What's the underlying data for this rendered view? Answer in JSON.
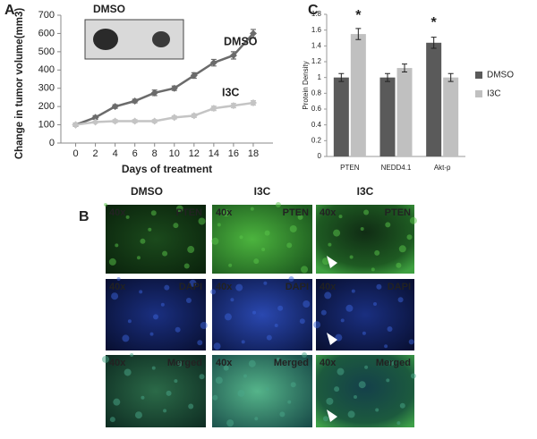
{
  "chart_data": [
    {
      "type": "line",
      "panel": "A",
      "x_label": "Days of treatment",
      "y_label": "Change in tumor volume(mm3)",
      "x": [
        0,
        2,
        4,
        6,
        8,
        10,
        12,
        14,
        16,
        18
      ],
      "series": [
        {
          "name": "DMSO",
          "color": "#6b6b6b",
          "values": [
            100,
            140,
            200,
            230,
            275,
            300,
            370,
            440,
            480,
            600
          ],
          "errors": [
            8,
            10,
            10,
            10,
            15,
            12,
            15,
            18,
            20,
            22
          ]
        },
        {
          "name": "I3C",
          "color": "#c4c4c4",
          "values": [
            100,
            115,
            120,
            120,
            120,
            140,
            150,
            190,
            205,
            220
          ],
          "errors": [
            5,
            6,
            8,
            8,
            8,
            8,
            10,
            12,
            12,
            12
          ]
        }
      ],
      "xlim": [
        -1.5,
        20
      ],
      "xticks": [
        0,
        2,
        4,
        6,
        8,
        10,
        12,
        14,
        16,
        18
      ],
      "ylim": [
        0,
        700
      ],
      "yticks": [
        0,
        100,
        200,
        300,
        400,
        500,
        600,
        700
      ],
      "annotations": [
        "DMSO"
      ]
    },
    {
      "type": "bar",
      "panel": "C",
      "y_label": "Protein Density",
      "categories": [
        "PTEN",
        "NEDD4.1",
        "Akt-p"
      ],
      "series": [
        {
          "name": "DMSO",
          "color": "#5a5a5a",
          "values": [
            1.0,
            1.0,
            1.44
          ],
          "errors": [
            0.05,
            0.05,
            0.07
          ]
        },
        {
          "name": "I3C",
          "color": "#c0c0c0",
          "values": [
            1.55,
            1.12,
            1.0
          ],
          "errors": [
            0.07,
            0.05,
            0.05
          ]
        }
      ],
      "ylim": [
        0,
        1.8
      ],
      "yticks": [
        0,
        0.2,
        0.4,
        0.6,
        0.8,
        1,
        1.2,
        1.4,
        1.6,
        1.8
      ],
      "legend": "right",
      "annotations": [
        "*",
        "*"
      ]
    }
  ],
  "micrographs": {
    "label": "B",
    "columns": [
      "DMSO",
      "I3C",
      "I3C"
    ],
    "magnification": "40x",
    "stains": [
      "PTEN",
      "DAPI",
      "Merged"
    ]
  }
}
